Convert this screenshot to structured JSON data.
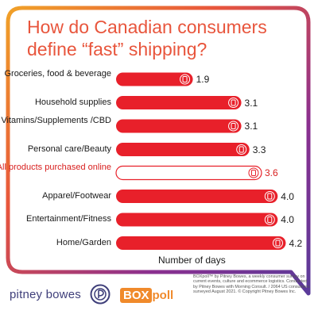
{
  "title": "How do Canadian consumers define “fast” shipping?",
  "chart_data": {
    "type": "bar",
    "orientation": "horizontal",
    "categories": [
      "Groceries, food & beverage",
      "Household supplies",
      "Vitamins/Supplements /CBD",
      "Personal care/Beauty",
      "All products purchased online",
      "Apparel/Footwear",
      "Entertainment/Fitness",
      "Home/Garden"
    ],
    "values": [
      1.9,
      3.1,
      3.1,
      3.3,
      3.6,
      4.0,
      4.0,
      4.2
    ],
    "highlight_index": 4,
    "xlabel": "Number of days",
    "ylabel": "",
    "grid": false,
    "colors": {
      "bar": "#e8202a",
      "highlight_bar": "#ffffff",
      "highlight_border": "#e8202a",
      "label": "#1a1a1a",
      "highlight_label": "#d8201f"
    },
    "icons": [
      "grocery-icon",
      "spray-bottle-icon",
      "pill-bottle-icon",
      "beauty-bottle-icon",
      "phone-cart-icon",
      "shoes-icon",
      "bicycle-icon",
      "plant-icon"
    ]
  },
  "title_color": "#e8553c",
  "frame_gradient": [
    "#f0a128",
    "#e8553c",
    "#8b2f8f",
    "#5a3b9a"
  ],
  "footer": {
    "brand": "pitney bowes",
    "poll_box": "BOX",
    "poll_text": "poll",
    "note": "BOXpoll™ by Pitney Bowes, a weekly consumer survey on current events, culture and ecommerce logistics. Conducted by Pitney Bowes with Morning Consult. / 2064 US consumers surveyed August 2021. © Copyright Pitney Bowes Inc."
  }
}
